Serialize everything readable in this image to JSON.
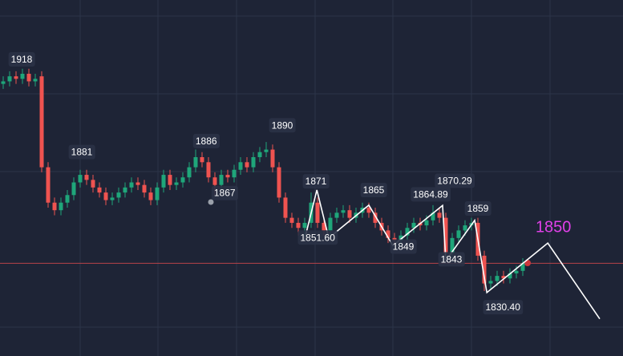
{
  "chart_data": {
    "type": "candlestick",
    "xlim": [
      -0.5,
      96.625
    ],
    "ylim": [
      1805.3,
      1946.2
    ],
    "up_color": "#1fa67a",
    "down_color": "#ef5350",
    "price_line": 1842,
    "price_line_color": "#b8434a",
    "candles": [
      [
        1913,
        1916,
        1911,
        1914
      ],
      [
        1914,
        1918,
        1912,
        1916
      ],
      [
        1916,
        1918,
        1913,
        1915
      ],
      [
        1915,
        1919,
        1913,
        1917
      ],
      [
        1917,
        1919,
        1912,
        1914
      ],
      [
        1914,
        1917,
        1912,
        1915
      ],
      [
        1916,
        1918,
        1878,
        1880
      ],
      [
        1880,
        1882,
        1864,
        1866
      ],
      [
        1866,
        1868,
        1861,
        1863
      ],
      [
        1863,
        1868,
        1861,
        1866
      ],
      [
        1866,
        1871,
        1864,
        1869
      ],
      [
        1869,
        1876,
        1867,
        1874
      ],
      [
        1874,
        1879,
        1872,
        1877
      ],
      [
        1877,
        1879,
        1873,
        1875
      ],
      [
        1875,
        1877,
        1870,
        1872
      ],
      [
        1872,
        1874,
        1868,
        1870
      ],
      [
        1870,
        1872,
        1865,
        1867
      ],
      [
        1867,
        1870,
        1865,
        1868
      ],
      [
        1868,
        1872,
        1866,
        1870
      ],
      [
        1870,
        1874,
        1868,
        1872
      ],
      [
        1872,
        1876,
        1870,
        1874
      ],
      [
        1874,
        1876,
        1871,
        1873
      ],
      [
        1873,
        1875,
        1868,
        1870
      ],
      [
        1870,
        1872,
        1865,
        1867
      ],
      [
        1867,
        1874,
        1865,
        1872
      ],
      [
        1872,
        1879,
        1870,
        1877
      ],
      [
        1877,
        1879,
        1871,
        1873
      ],
      [
        1873,
        1876,
        1871,
        1874
      ],
      [
        1874,
        1878,
        1872,
        1876
      ],
      [
        1876,
        1882,
        1874,
        1880
      ],
      [
        1880,
        1887,
        1878,
        1884
      ],
      [
        1884,
        1886,
        1880,
        1882
      ],
      [
        1882,
        1884,
        1874,
        1876
      ],
      [
        1876,
        1878,
        1869,
        1873
      ],
      [
        1873,
        1879,
        1871,
        1877
      ],
      [
        1877,
        1879,
        1874,
        1876
      ],
      [
        1876,
        1881,
        1874,
        1879
      ],
      [
        1879,
        1884,
        1877,
        1882
      ],
      [
        1882,
        1884,
        1878,
        1880
      ],
      [
        1880,
        1886,
        1878,
        1884
      ],
      [
        1884,
        1888,
        1882,
        1886
      ],
      [
        1886,
        1890,
        1884,
        1887
      ],
      [
        1887,
        1889,
        1878,
        1880
      ],
      [
        1880,
        1882,
        1866,
        1868
      ],
      [
        1868,
        1870,
        1858,
        1860
      ],
      [
        1860,
        1862,
        1856,
        1858
      ],
      [
        1858,
        1860,
        1853,
        1856
      ],
      [
        1856,
        1860,
        1852,
        1858
      ],
      [
        1858,
        1870,
        1856,
        1866
      ],
      [
        1866,
        1868,
        1856,
        1858
      ],
      [
        1858,
        1860,
        1853,
        1855
      ],
      [
        1855,
        1862,
        1853,
        1860
      ],
      [
        1860,
        1864,
        1858,
        1862
      ],
      [
        1862,
        1865,
        1860,
        1863
      ],
      [
        1863,
        1865,
        1858,
        1860
      ],
      [
        1860,
        1864,
        1858,
        1862
      ],
      [
        1862,
        1866,
        1860,
        1864
      ],
      [
        1864,
        1866,
        1860,
        1862
      ],
      [
        1862,
        1864,
        1856,
        1858
      ],
      [
        1858,
        1860,
        1853,
        1855
      ],
      [
        1855,
        1857,
        1850,
        1852
      ],
      [
        1852,
        1854,
        1849,
        1851
      ],
      [
        1851,
        1855,
        1849,
        1853
      ],
      [
        1853,
        1858,
        1851,
        1856
      ],
      [
        1856,
        1860,
        1854,
        1858
      ],
      [
        1858,
        1860,
        1855,
        1857
      ],
      [
        1857,
        1861,
        1855,
        1859
      ],
      [
        1859,
        1865,
        1857,
        1862
      ],
      [
        1862,
        1864,
        1858,
        1860
      ],
      [
        1860,
        1862,
        1843,
        1846
      ],
      [
        1846,
        1854,
        1844,
        1852
      ],
      [
        1852,
        1857,
        1850,
        1855
      ],
      [
        1855,
        1859,
        1853,
        1857
      ],
      [
        1857,
        1860,
        1855,
        1858
      ],
      [
        1858,
        1860,
        1843,
        1845
      ],
      [
        1845,
        1847,
        1831,
        1834
      ],
      [
        1834,
        1837,
        1832,
        1835
      ],
      [
        1835,
        1839,
        1833,
        1837
      ],
      [
        1837,
        1839,
        1834,
        1836
      ],
      [
        1836,
        1840,
        1834,
        1838
      ],
      [
        1838,
        1841,
        1836,
        1839
      ],
      [
        1839,
        1844,
        1837,
        1842
      ]
    ],
    "zigzag": {
      "color": "#ffffff",
      "x": [
        47,
        48.9,
        50.75,
        57,
        60.75,
        68.5,
        69,
        73.5,
        75.4,
        84.9,
        93
      ],
      "values": [
        1851.6,
        1871,
        1852,
        1865,
        1849,
        1864.89,
        1843,
        1859,
        1830.4,
        1850,
        1820
      ]
    },
    "annotations": [
      {
        "label": "1918",
        "value": 1918,
        "x": 3
      },
      {
        "label": "1881",
        "value": 1881,
        "x": 13.25
      },
      {
        "label": "1886",
        "value": 1886,
        "x": 31.9
      },
      {
        "label": "1867",
        "value": 1867,
        "x": 32.4
      },
      {
        "label": "1890",
        "value": 1890,
        "x": 42
      },
      {
        "label": "1871",
        "value": 1871,
        "x": 48.75
      },
      {
        "label": "1851.60",
        "value": 1851.6,
        "x": 47.4
      },
      {
        "label": "1865",
        "value": 1865,
        "x": 57
      },
      {
        "label": "1864.89",
        "value": 1864.89,
        "x": 68.5
      },
      {
        "label": "1870.29",
        "value": 1870.29,
        "x": 68.5
      },
      {
        "label": "1849",
        "value": 1849,
        "x": 60.75
      },
      {
        "label": "1843",
        "value": 1843,
        "x": 69
      },
      {
        "label": "1859",
        "value": 1859,
        "x": 73.5
      },
      {
        "label": "1830.40",
        "value": 1830.4,
        "x": 75.4
      },
      {
        "label": "1850",
        "value": 1850,
        "x": 84.9,
        "color": "#e040e8"
      }
    ]
  }
}
